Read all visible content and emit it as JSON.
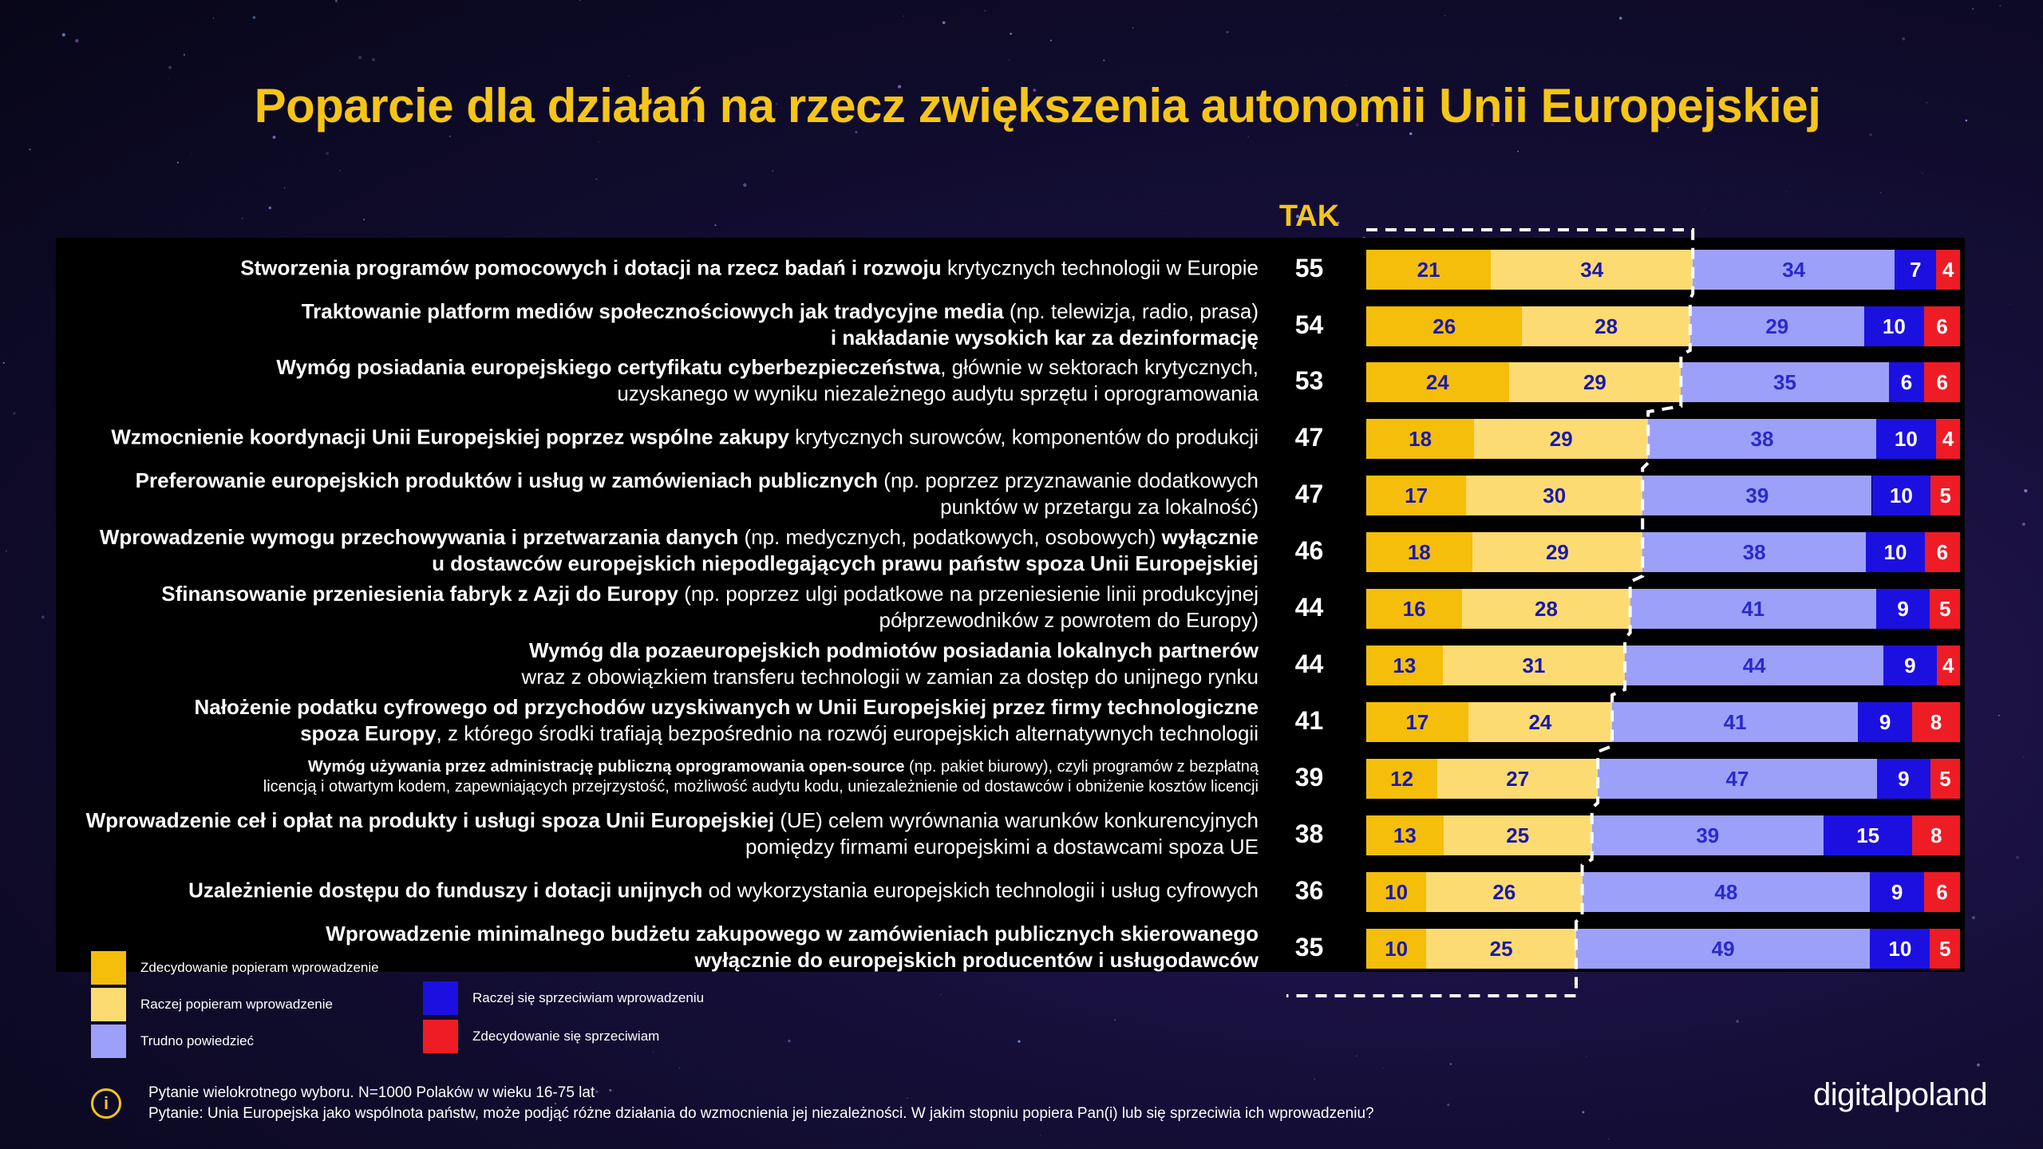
{
  "title": "Poparcie dla działań na rzecz zwiększenia autonomii Unii Europejskiej",
  "tak_header": "TAK",
  "colors": {
    "c1": "#f5be0a",
    "c2": "#fddb73",
    "c3": "#9da0f8",
    "c4": "#1c10e0",
    "c5": "#ee1c25",
    "title": "#f5c518"
  },
  "chart_data": {
    "type": "bar",
    "stacked": true,
    "orientation": "horizontal",
    "title": "Poparcie dla działań na rzecz zwiększenia autonomii Unii Europejskiej",
    "categories": [
      "Stworzenia programów pomocowych i dotacji na rzecz badań i rozwoju krytycznych technologii w Europie",
      "Traktowanie platform mediów społecznościowych jak tradycyjne media (np. telewizja, radio, prasa) i nakładanie wysokich kar za dezinformację",
      "Wymóg posiadania europejskiego certyfikatu cyberbezpieczeństwa, głównie w sektorach krytycznych, uzyskanego w wyniku niezależnego audytu sprzętu i oprogramowania",
      "Wzmocnienie koordynacji Unii Europejskiej poprzez wspólne zakupy krytycznych surowców, komponentów do produkcji",
      "Preferowanie europejskich produktów i usług w zamówieniach publicznych (np. poprzez przyznawanie dodatkowych punktów w przetargu za lokalność)",
      "Wprowadzenie wymogu przechowywania i przetwarzania danych (np. medycznych, podatkowych, osobowych) wyłącznie u dostawców europejskich niepodlegających prawu państw spoza Unii Europejskiej",
      "Sfinansowanie przeniesienia fabryk z Azji do Europy (np. poprzez ulgi podatkowe na przeniesienie linii produkcyjnej półprzewodników z powrotem do Europy)",
      "Wymóg dla pozaeuropejskich podmiotów posiadania lokalnych partnerów wraz z obowiązkiem transferu technologii w zamian za dostęp do unijnego rynku",
      "Nałożenie podatku cyfrowego od przychodów uzyskiwanych w Unii Europejskiej przez firmy technologiczne spoza Europy, z którego środki trafiają bezpośrednio na rozwój europejskich alternatywnych technologii",
      "Wymóg używania przez administrację publiczną oprogramowania open-source (np. pakiet biurowy), czyli programów z bezpłatną licencją i otwartym kodem, zapewniających przejrzystość, możliwość audytu kodu, uniezależnienie od dostawców i obniżenie kosztów licencji",
      "Wprowadzenie ceł i opłat na produkty i usługi spoza Unii Europejskiej (UE) celem wyrównania warunków konkurencyjnych pomiędzy firmami europejskimi a dostawcami spoza UE",
      "Uzależnienie dostępu do funduszy i dotacji unijnych od wykorzystania europejskich technologii i usług cyfrowych",
      "Wprowadzenie minimalnego budżetu zakupowego w zamówieniach publicznych skierowanego wyłącznie do europejskich producentów i usługodawców"
    ],
    "series": [
      {
        "name": "Zdecydowanie popieram wprowadzenie",
        "values": [
          21,
          26,
          24,
          18,
          17,
          18,
          16,
          13,
          17,
          12,
          13,
          10,
          10
        ]
      },
      {
        "name": "Raczej popieram wprowadzenie",
        "values": [
          34,
          28,
          29,
          29,
          30,
          29,
          28,
          31,
          24,
          27,
          25,
          26,
          25
        ]
      },
      {
        "name": "Trudno powiedzieć",
        "values": [
          34,
          29,
          35,
          38,
          39,
          38,
          41,
          44,
          41,
          47,
          39,
          48,
          49
        ]
      },
      {
        "name": "Raczej się sprzeciwiam wprowadzeniu",
        "values": [
          7,
          10,
          6,
          10,
          10,
          10,
          9,
          9,
          9,
          9,
          15,
          9,
          10
        ]
      },
      {
        "name": "Zdecydowanie się sprzeciwiam",
        "values": [
          4,
          6,
          6,
          4,
          5,
          6,
          5,
          4,
          8,
          5,
          8,
          6,
          5
        ]
      }
    ],
    "tak_values": [
      55,
      54,
      53,
      47,
      47,
      46,
      44,
      44,
      41,
      39,
      38,
      36,
      35
    ],
    "legend_position": "bottom-left"
  },
  "rows": [
    {
      "bold": "Stworzenia programów pomocowych i dotacji na rzecz badań i rozwoju",
      "rest": " krytycznych technologii w Europie",
      "line2_normal": "",
      "line2_bold": "",
      "line2_rest": "",
      "small": false
    },
    {
      "bold": "Traktowanie platform mediów społecznościowych jak tradycyjne media",
      "rest": " (np. telewizja, radio, prasa)",
      "line2_normal": "",
      "line2_bold": "i nakładanie wysokich kar za dezinformację",
      "line2_rest": "",
      "small": false
    },
    {
      "bold": "Wymóg posiadania europejskiego certyfikatu cyberbezpieczeństwa",
      "rest": ", głównie w sektorach krytycznych,",
      "line2_normal": "uzyskanego w wyniku niezależnego audytu sprzętu i oprogramowania",
      "line2_bold": "",
      "line2_rest": "",
      "small": false
    },
    {
      "bold": "Wzmocnienie koordynacji Unii Europejskiej poprzez wspólne zakupy",
      "rest": " krytycznych surowców, komponentów do produkcji",
      "line2_normal": "",
      "line2_bold": "",
      "line2_rest": "",
      "small": false
    },
    {
      "bold": "Preferowanie europejskich produktów i usług w zamówieniach publicznych",
      "rest": " (np. poprzez przyznawanie dodatkowych",
      "line2_normal": "punktów w przetargu za lokalność)",
      "line2_bold": "",
      "line2_rest": "",
      "small": false
    },
    {
      "bold": "Wprowadzenie wymogu przechowywania i przetwarzania danych",
      "rest": " (np. medycznych, podatkowych, osobowych) ",
      "bold2": "wyłącznie",
      "line2_normal": "",
      "line2_bold": "u dostawców europejskich niepodlegających prawu państw spoza Unii Europejskiej",
      "line2_rest": "",
      "small": false
    },
    {
      "bold": "Sfinansowanie przeniesienia fabryk z Azji do Europy",
      "rest": " (np. poprzez ulgi podatkowe na przeniesienie linii produkcyjnej",
      "line2_normal": "półprzewodników z powrotem do Europy)",
      "line2_bold": "",
      "line2_rest": "",
      "small": false
    },
    {
      "bold": "Wymóg dla pozaeuropejskich podmiotów posiadania lokalnych partnerów",
      "rest": "",
      "line2_normal": "wraz z obowiązkiem transferu technologii w zamian za dostęp do unijnego rynku",
      "line2_bold": "",
      "line2_rest": "",
      "small": false
    },
    {
      "bold": "Nałożenie podatku cyfrowego od przychodów uzyskiwanych w Unii Europejskiej przez firmy technologiczne",
      "rest": "",
      "line2_normal": "",
      "line2_bold": "spoza Europy",
      "line2_rest": ", z którego środki trafiają bezpośrednio na rozwój europejskich alternatywnych technologii",
      "small": false
    },
    {
      "bold": "Wymóg używania przez administrację publiczną oprogramowania open-source",
      "rest": " (np. pakiet biurowy), czyli programów z bezpłatną",
      "line2_normal": "licencją i otwartym kodem, zapewniających przejrzystość, możliwość audytu kodu, uniezależnienie od dostawców i obniżenie kosztów licencji",
      "line2_bold": "",
      "line2_rest": "",
      "small": true
    },
    {
      "bold": "Wprowadzenie ceł i opłat na produkty i usługi spoza Unii Europejskiej",
      "rest": " (UE) celem wyrównania warunków konkurencyjnych",
      "line2_normal": "pomiędzy firmami europejskimi a dostawcami spoza UE",
      "line2_bold": "",
      "line2_rest": "",
      "small": false
    },
    {
      "bold": "Uzależnienie dostępu do funduszy i dotacji unijnych",
      "rest": " od wykorzystania europejskich technologii i usług cyfrowych",
      "line2_normal": "",
      "line2_bold": "",
      "line2_rest": "",
      "small": false
    },
    {
      "bold": "Wprowadzenie minimalnego budżetu zakupowego w zamówieniach publicznych skierowanego",
      "rest": "",
      "line2_normal": "",
      "line2_bold": "wyłącznie do europejskich producentów i usługodawców",
      "line2_rest": "",
      "small": false
    }
  ],
  "legend": [
    {
      "label": "Zdecydowanie popieram wprowadzenie"
    },
    {
      "label": "Raczej popieram wprowadzenie"
    },
    {
      "label": "Trudno powiedzieć"
    },
    {
      "label": "Raczej się sprzeciwiam wprowadzeniu"
    },
    {
      "label": "Zdecydowanie się sprzeciwiam"
    }
  ],
  "footnote": {
    "icon": "info-icon",
    "line1": "Pytanie wielokrotnego wyboru. N=1000 Polaków w wieku 16-75 lat",
    "line2": "Pytanie: Unia Europejska jako wspólnota państw, może podjąć różne działania do wzmocnienia jej niezależności. W jakim stopniu popiera Pan(i) lub się sprzeciwia ich wprowadzeniu?"
  },
  "logo": "digitalpoland"
}
